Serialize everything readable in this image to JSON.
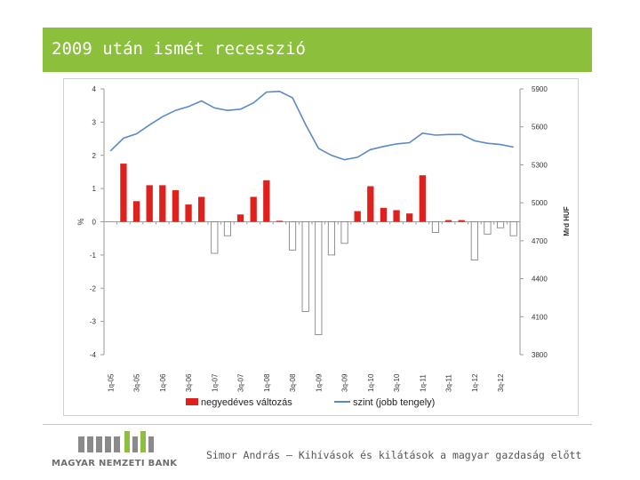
{
  "slide": {
    "title": "2009 után ismét recesszió",
    "footer": "Simor András – Kihívások és kilátások a magyar gazdaság előtt",
    "logo_text": "MAGYAR NEMZETI BANK"
  },
  "chart_data": {
    "type": "bar+line",
    "categories": [
      "1q-05",
      "2q-05",
      "3q-05",
      "4q-05",
      "1q-06",
      "2q-06",
      "3q-06",
      "4q-06",
      "1q-07",
      "2q-07",
      "3q-07",
      "4q-07",
      "1q-08",
      "2q-08",
      "3q-08",
      "4q-08",
      "1q-09",
      "2q-09",
      "3q-09",
      "4q-09",
      "1q-10",
      "2q-10",
      "3q-10",
      "4q-10",
      "1q-11",
      "2q-11",
      "3q-11",
      "4q-11",
      "1q-12",
      "2q-12",
      "3q-12",
      "4q-12"
    ],
    "tick_labels": [
      "1q-05",
      "3q-05",
      "1q-06",
      "3q-06",
      "1q-07",
      "3q-07",
      "1q-08",
      "3q-08",
      "1q-09",
      "3q-09",
      "1q-10",
      "3q-10",
      "1q-11",
      "3q-11",
      "1q-12",
      "3q-12"
    ],
    "series": [
      {
        "name": "negyedéves változás",
        "type": "bar",
        "axis": "left",
        "color": "#e0201c",
        "values": [
          null,
          1.75,
          0.62,
          1.1,
          1.1,
          0.95,
          0.52,
          0.75,
          -0.95,
          -0.42,
          0.22,
          0.75,
          1.25,
          0.03,
          -0.85,
          -2.7,
          -3.4,
          -1.0,
          -0.65,
          0.32,
          1.07,
          0.42,
          0.35,
          0.25,
          1.4,
          -0.32,
          0.05,
          0.05,
          -1.15,
          -0.37,
          -0.18,
          -0.42
        ]
      },
      {
        "name": "szint (jobb tengely)",
        "type": "line",
        "axis": "right",
        "color": "#5a8ac6",
        "values": [
          5410,
          5510,
          5545,
          5615,
          5680,
          5730,
          5760,
          5805,
          5750,
          5730,
          5740,
          5790,
          5875,
          5880,
          5830,
          5620,
          5430,
          5375,
          5340,
          5360,
          5420,
          5445,
          5465,
          5475,
          5550,
          5535,
          5540,
          5540,
          5490,
          5470,
          5460,
          5440
        ]
      }
    ],
    "y_left": {
      "label": "%",
      "min": -4,
      "max": 4,
      "ticks": [
        4,
        3,
        2,
        1,
        0,
        -1,
        -2,
        -3,
        -4
      ]
    },
    "y_right": {
      "label": "Mrd HUF",
      "min": 3800,
      "max": 5900,
      "ticks": [
        5900,
        5600,
        5300,
        5000,
        4700,
        4400,
        4100,
        3800
      ]
    },
    "legend": {
      "position": "bottom",
      "items": [
        "negyedéves változás",
        "szint (jobb tengely)"
      ]
    }
  }
}
